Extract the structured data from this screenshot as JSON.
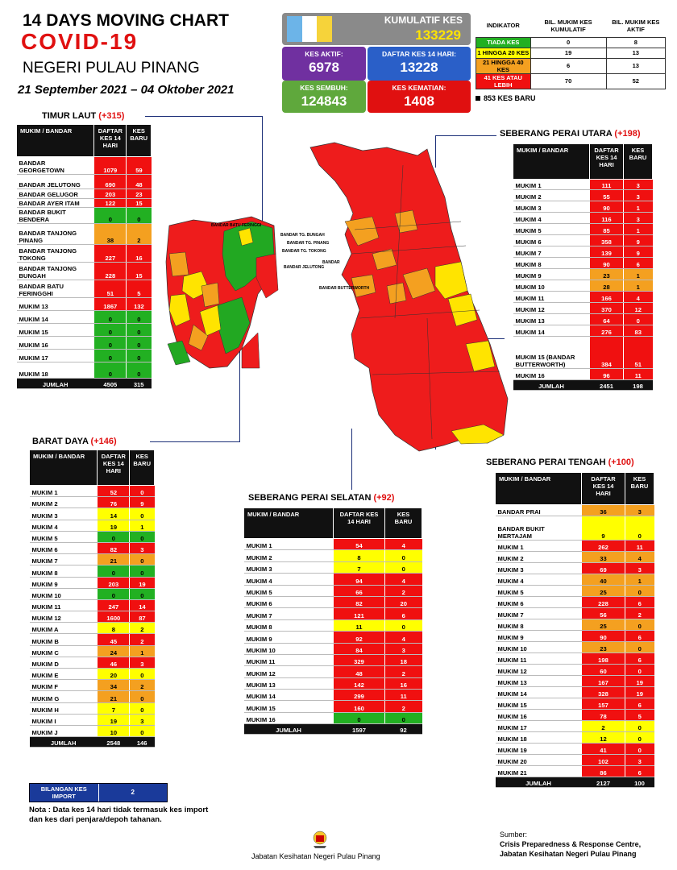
{
  "header": {
    "line1": "14  DAYS MOVING CHART",
    "line2": "COVID-19",
    "line3": "NEGERI PULAU PINANG",
    "date_range": "21 September 2021 – 04 Oktober 2021"
  },
  "stats": {
    "kumulatif_label": "KUMULATIF KES",
    "kumulatif_value": "133229",
    "aktif_label": "KES AKTIF:",
    "aktif_value": "6978",
    "daftar_label": "DAFTAR KES 14 HARI:",
    "daftar_value": "13228",
    "sembuh_label": "KES SEMBUH:",
    "sembuh_value": "124843",
    "kematian_label": "KES KEMATIAN:",
    "kematian_value": "1408"
  },
  "legend": {
    "col1": "INDIKATOR",
    "col2": "BIL. MUKIM KES KUMULATIF",
    "col3": "BIL. MUKIM KES AKTIF",
    "rows": [
      {
        "label": "TIADA KES",
        "kum": "0",
        "aktif": "8",
        "color": "#22b022"
      },
      {
        "label": "1 HINGGA 20 KES",
        "kum": "19",
        "aktif": "13",
        "color": "#ffff00"
      },
      {
        "label": "21 HINGGA 40 KES",
        "kum": "6",
        "aktif": "13",
        "color": "#f4a020"
      },
      {
        "label": "41 KES ATAU LEBIH",
        "kum": "70",
        "aktif": "52",
        "color": "#f01010"
      }
    ],
    "new_cases": "853 KES BARU"
  },
  "timur_laut": {
    "title": "TIMUR LAUT",
    "plus": "(+315)",
    "h1": "MUKIM / BANDAR",
    "h2": "DAFTAR KES 14 HARI",
    "h3": "KES BARU",
    "rows": [
      [
        "BANDAR GEORGETOWN",
        "1079",
        "59",
        "red"
      ],
      [
        "BANDAR JELUTONG",
        "690",
        "48",
        "red"
      ],
      [
        "BANDAR GELUGOR",
        "203",
        "23",
        "red"
      ],
      [
        "BANDAR AYER ITAM",
        "122",
        "15",
        "red"
      ],
      [
        "BANDAR BUKIT BENDERA",
        "0",
        "0",
        "grn"
      ],
      [
        "BANDAR TANJONG PINANG",
        "38",
        "2",
        "org"
      ],
      [
        "BANDAR TANJONG TOKONG",
        "227",
        "16",
        "red"
      ],
      [
        "BANDAR TANJONG BUNGAH",
        "228",
        "15",
        "red"
      ],
      [
        "BANDAR BATU FERINGGHI",
        "51",
        "5",
        "red"
      ],
      [
        "MUKIM 13",
        "1867",
        "132",
        "red"
      ],
      [
        "MUKIM 14",
        "0",
        "0",
        "grn"
      ],
      [
        "MUKIM 15",
        "0",
        "0",
        "grn"
      ],
      [
        "MUKIM 16",
        "0",
        "0",
        "grn"
      ],
      [
        "MUKIM 17",
        "0",
        "0",
        "grn"
      ],
      [
        "MUKIM 18",
        "0",
        "0",
        "grn"
      ]
    ],
    "total_label": "JUMLAH",
    "total_daftar": "4505",
    "total_baru": "315"
  },
  "barat_daya": {
    "title": "BARAT DAYA",
    "plus": "(+146)",
    "h1": "MUKIM / BANDAR",
    "h2": "DAFTAR KES 14 HARI",
    "h3": "KES BARU",
    "rows": [
      [
        "MUKIM 1",
        "52",
        "0",
        "red"
      ],
      [
        "MUKIM 2",
        "76",
        "9",
        "red"
      ],
      [
        "MUKIM 3",
        "14",
        "0",
        "yel"
      ],
      [
        "MUKIM 4",
        "19",
        "1",
        "yel"
      ],
      [
        "MUKIM 5",
        "0",
        "0",
        "grn"
      ],
      [
        "MUKIM 6",
        "82",
        "3",
        "red"
      ],
      [
        "MUKIM 7",
        "21",
        "0",
        "org"
      ],
      [
        "MUKIM 8",
        "0",
        "0",
        "grn"
      ],
      [
        "MUKIM 9",
        "203",
        "19",
        "red"
      ],
      [
        "MUKIM 10",
        "0",
        "0",
        "grn"
      ],
      [
        "MUKIM 11",
        "247",
        "14",
        "red"
      ],
      [
        "MUKIM 12",
        "1600",
        "87",
        "red"
      ],
      [
        "MUKIM A",
        "8",
        "2",
        "yel"
      ],
      [
        "MUKIM B",
        "45",
        "2",
        "red"
      ],
      [
        "MUKIM C",
        "24",
        "1",
        "org"
      ],
      [
        "MUKIM D",
        "46",
        "3",
        "red"
      ],
      [
        "MUKIM E",
        "20",
        "0",
        "yel"
      ],
      [
        "MUKIM F",
        "34",
        "2",
        "org"
      ],
      [
        "MUKIM G",
        "21",
        "0",
        "org"
      ],
      [
        "MUKIM H",
        "7",
        "0",
        "yel"
      ],
      [
        "MUKIM I",
        "19",
        "3",
        "yel"
      ],
      [
        "MUKIM J",
        "10",
        "0",
        "yel"
      ]
    ],
    "total_label": "JUMLAH",
    "total_daftar": "2548",
    "total_baru": "146"
  },
  "spu": {
    "title": "SEBERANG PERAI UTARA",
    "plus": "(+198)",
    "h1": "MUKIM / BANDAR",
    "h2": "DAFTAR KES 14 HARI",
    "h3": "KES BARU",
    "rows": [
      [
        "MUKIM 1",
        "111",
        "3",
        "red"
      ],
      [
        "MUKIM 2",
        "55",
        "3",
        "red"
      ],
      [
        "MUKIM 3",
        "90",
        "1",
        "red"
      ],
      [
        "MUKIM 4",
        "116",
        "3",
        "red"
      ],
      [
        "MUKIM 5",
        "85",
        "1",
        "red"
      ],
      [
        "MUKIM 6",
        "358",
        "9",
        "red"
      ],
      [
        "MUKIM 7",
        "139",
        "9",
        "red"
      ],
      [
        "MUKIM 8",
        "90",
        "6",
        "red"
      ],
      [
        "MUKIM 9",
        "23",
        "1",
        "org"
      ],
      [
        "MUKIM 10",
        "28",
        "1",
        "org"
      ],
      [
        "MUKIM 11",
        "166",
        "4",
        "red"
      ],
      [
        "MUKIM 12",
        "370",
        "12",
        "red"
      ],
      [
        "MUKIM 13",
        "64",
        "0",
        "red"
      ],
      [
        "MUKIM 14",
        "276",
        "83",
        "red"
      ],
      [
        "MUKIM 15 (BANDAR BUTTERWORTH)",
        "384",
        "51",
        "red"
      ],
      [
        "MUKIM 16",
        "96",
        "11",
        "red"
      ]
    ],
    "total_label": "JUMLAH",
    "total_daftar": "2451",
    "total_baru": "198"
  },
  "sps": {
    "title": "SEBERANG PERAI SELATAN",
    "plus": "(+92)",
    "h1": "MUKIM / BANDAR",
    "h2": "DAFTAR KES 14 HARI",
    "h3": "KES BARU",
    "rows": [
      [
        "MUKIM 1",
        "54",
        "4",
        "red"
      ],
      [
        "MUKIM 2",
        "8",
        "0",
        "yel"
      ],
      [
        "MUKIM 3",
        "7",
        "0",
        "yel"
      ],
      [
        "MUKIM 4",
        "94",
        "4",
        "red"
      ],
      [
        "MUKIM 5",
        "66",
        "2",
        "red"
      ],
      [
        "MUKIM 6",
        "82",
        "20",
        "red"
      ],
      [
        "MUKIM 7",
        "121",
        "6",
        "red"
      ],
      [
        "MUKIM 8",
        "11",
        "0",
        "yel"
      ],
      [
        "MUKIM 9",
        "92",
        "4",
        "red"
      ],
      [
        "MUKIM 10",
        "84",
        "3",
        "red"
      ],
      [
        "MUKIM 11",
        "329",
        "18",
        "red"
      ],
      [
        "MUKIM 12",
        "48",
        "2",
        "red"
      ],
      [
        "MUKIM 13",
        "142",
        "16",
        "red"
      ],
      [
        "MUKIM 14",
        "299",
        "11",
        "red"
      ],
      [
        "MUKIM 15",
        "160",
        "2",
        "red"
      ],
      [
        "MUKIM 16",
        "0",
        "0",
        "grn"
      ]
    ],
    "total_label": "JUMLAH",
    "total_daftar": "1597",
    "total_baru": "92"
  },
  "spt": {
    "title": "SEBERANG PERAI TENGAH",
    "plus": "(+100)",
    "h1": "MUKIM / BANDAR",
    "h2": "DAFTAR KES 14 HARI",
    "h3": "KES BARU",
    "rows": [
      [
        "BANDAR PRAI",
        "36",
        "3",
        "org"
      ],
      [
        "BANDAR BUKIT MERTAJAM",
        "9",
        "0",
        "yel"
      ],
      [
        "MUKIM 1",
        "262",
        "11",
        "red"
      ],
      [
        "MUKIM 2",
        "33",
        "4",
        "org"
      ],
      [
        "MUKIM 3",
        "69",
        "3",
        "red"
      ],
      [
        "MUKIM 4",
        "40",
        "1",
        "org"
      ],
      [
        "MUKIM 5",
        "25",
        "0",
        "org"
      ],
      [
        "MUKIM 6",
        "228",
        "6",
        "red"
      ],
      [
        "MUKIM 7",
        "56",
        "2",
        "red"
      ],
      [
        "MUKIM 8",
        "25",
        "0",
        "org"
      ],
      [
        "MUKIM 9",
        "90",
        "6",
        "red"
      ],
      [
        "MUKIM 10",
        "23",
        "0",
        "org"
      ],
      [
        "MUKIM 11",
        "198",
        "6",
        "red"
      ],
      [
        "MUKIM 12",
        "60",
        "0",
        "red"
      ],
      [
        "MUKIM 13",
        "167",
        "19",
        "red"
      ],
      [
        "MUKIM 14",
        "328",
        "19",
        "red"
      ],
      [
        "MUKIM 15",
        "157",
        "6",
        "red"
      ],
      [
        "MUKIM 16",
        "78",
        "5",
        "red"
      ],
      [
        "MUKIM 17",
        "2",
        "0",
        "yel"
      ],
      [
        "MUKIM 18",
        "12",
        "0",
        "yel"
      ],
      [
        "MUKIM 19",
        "41",
        "0",
        "red"
      ],
      [
        "MUKIM 20",
        "102",
        "3",
        "red"
      ],
      [
        "MUKIM 21",
        "86",
        "6",
        "red"
      ]
    ],
    "total_label": "JUMLAH",
    "total_daftar": "2127",
    "total_baru": "100"
  },
  "map_labels": {
    "batu_feringgi": "BANDAR BATU FERINGGI",
    "tg_bungah": "BANDAR TG. BUNGAH",
    "tg_pinang": "BANDAR TG. PINANG",
    "tg_tokong": "BANDAR TG. TOKONG",
    "bandar": "BANDAR",
    "jelutong": "BANDAR JELUTONG",
    "butterworth": "BANDAR BUTTERWORTH"
  },
  "import": {
    "label": "BILANGAN KES IMPORT",
    "value": "2"
  },
  "note": "Nota : Data kes 14 hari tidak termasuk kes import dan kes dari penjara/depoh tahanan.",
  "footer": {
    "dept": "Jabatan Kesihatan Negeri Pulau Pinang",
    "source_label": "Sumber:",
    "source1": "Crisis Preparedness & Response Centre,",
    "source2": "Jabatan Kesihatan Negeri Pulau Pinang"
  }
}
